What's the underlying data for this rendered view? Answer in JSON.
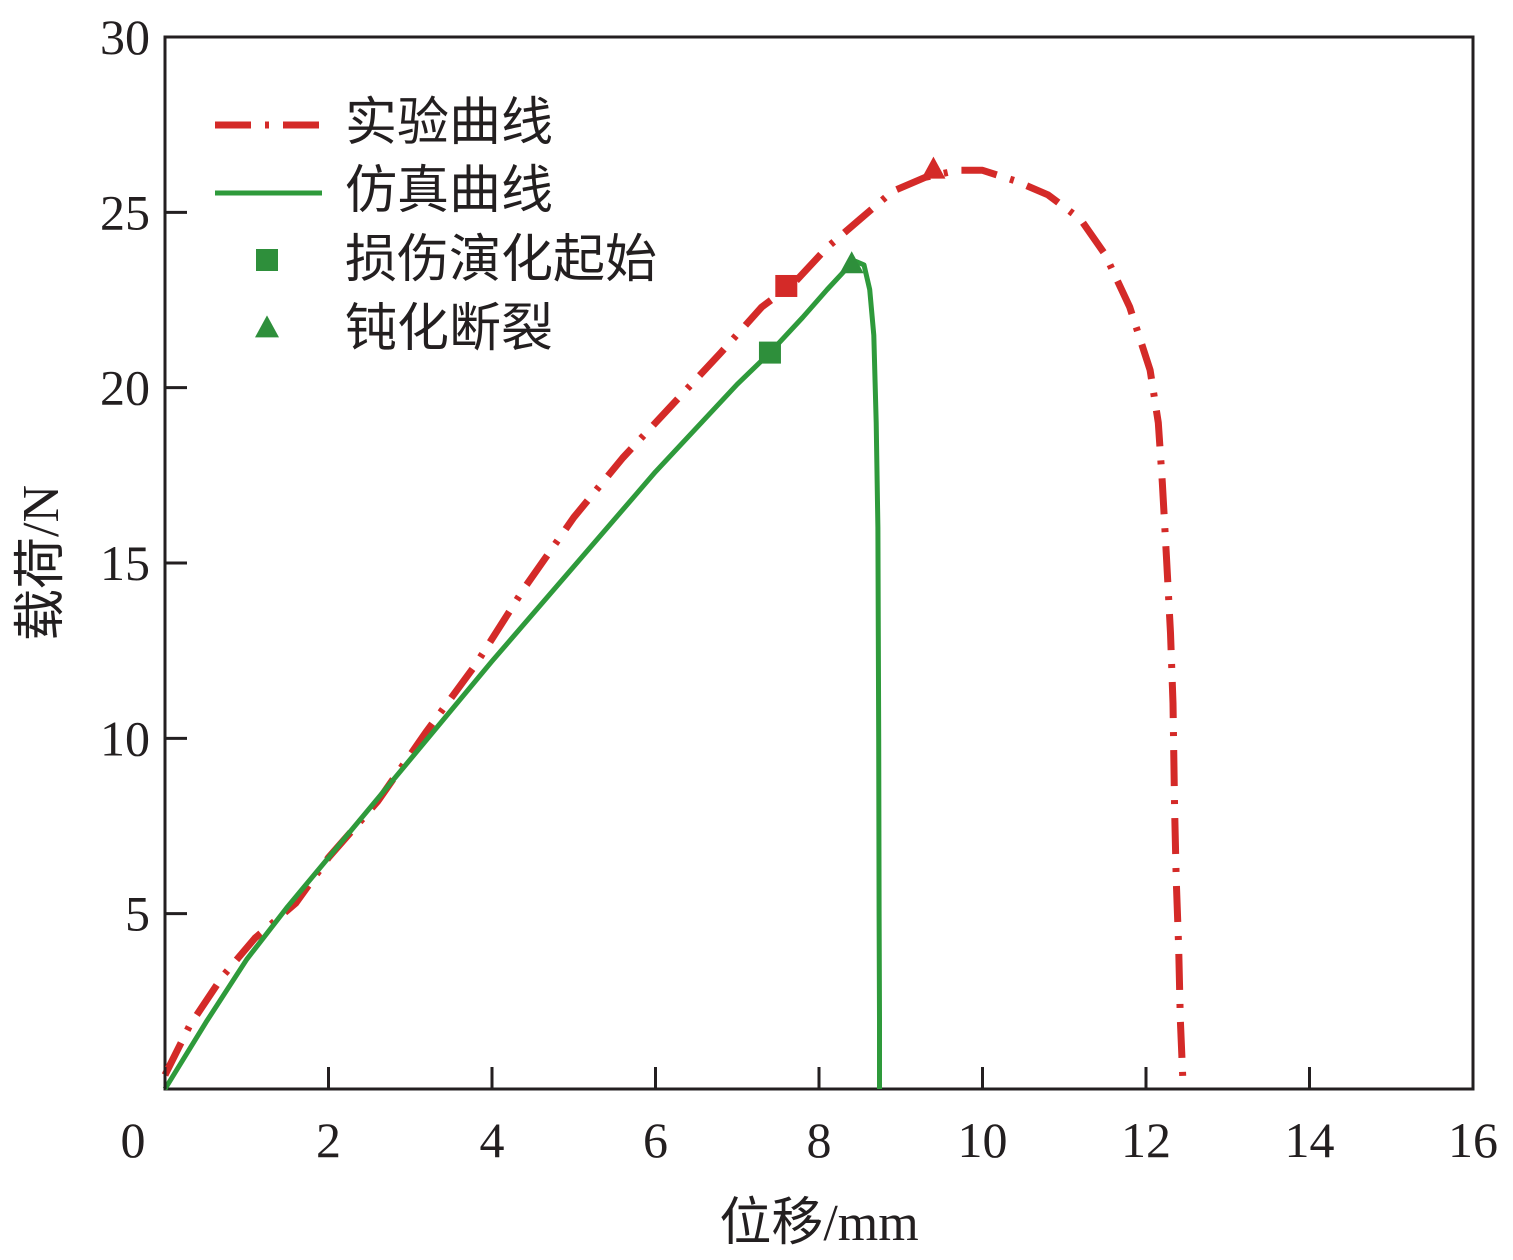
{
  "chart_data": {
    "type": "line",
    "xlabel": "位移/mm",
    "ylabel": "载荷/N",
    "xlim": [
      0,
      16
    ],
    "ylim": [
      0,
      30
    ],
    "xticks": [
      0,
      2,
      4,
      6,
      8,
      10,
      12,
      14,
      16
    ],
    "yticks": [
      5,
      10,
      15,
      20,
      25,
      30
    ],
    "grid": false,
    "legend_position": "top-left",
    "series": [
      {
        "name": "实验曲线",
        "color": "#d42a28",
        "style": "dash-dot",
        "x": [
          0,
          0.3,
          0.7,
          1.1,
          1.6,
          2.0,
          2.6,
          3.2,
          3.8,
          4.4,
          5.0,
          5.6,
          6.2,
          6.8,
          7.3,
          7.7,
          8.1,
          8.5,
          8.9,
          9.3,
          9.7,
          10.0,
          10.4,
          10.8,
          11.2,
          11.5,
          11.8,
          12.05,
          12.15,
          12.2,
          12.25,
          12.3,
          12.33,
          12.35,
          12.37,
          12.4,
          12.42,
          12.45
        ],
        "y": [
          0.4,
          1.8,
          3.2,
          4.3,
          5.3,
          6.6,
          8.2,
          10.2,
          12.1,
          14.3,
          16.3,
          18.0,
          19.5,
          21.0,
          22.3,
          23.0,
          24.0,
          24.8,
          25.6,
          26.0,
          26.2,
          26.2,
          25.9,
          25.5,
          24.8,
          23.8,
          22.3,
          20.5,
          19.0,
          17.3,
          15.2,
          13.0,
          11.0,
          8.0,
          6.0,
          4.0,
          2.0,
          0.3
        ]
      },
      {
        "name": "仿真曲线",
        "color": "#2e9a3b",
        "style": "solid",
        "x": [
          0,
          0.5,
          1.0,
          1.5,
          2.0,
          3.0,
          4.0,
          5.0,
          6.0,
          7.0,
          7.4,
          7.8,
          8.1,
          8.3,
          8.45,
          8.55,
          8.62,
          8.67,
          8.7,
          8.72,
          8.73,
          8.735,
          8.74,
          8.74
        ],
        "y": [
          0,
          1.9,
          3.7,
          5.2,
          6.6,
          9.4,
          12.2,
          14.9,
          17.6,
          20.1,
          21.0,
          22.0,
          22.8,
          23.3,
          23.6,
          23.5,
          22.8,
          21.5,
          19.0,
          16.0,
          10.0,
          5.0,
          2.0,
          0
        ]
      }
    ],
    "markers": [
      {
        "legend": "损伤演化起始",
        "shape": "square",
        "series": "实验曲线",
        "x": 7.6,
        "y": 22.9,
        "color": "#d42a28"
      },
      {
        "legend": "损伤演化起始",
        "shape": "square",
        "series": "仿真曲线",
        "x": 7.4,
        "y": 21.0,
        "color": "#2e8f3b"
      },
      {
        "legend": "钝化断裂",
        "shape": "triangle",
        "series": "实验曲线",
        "x": 9.4,
        "y": 26.2,
        "color": "#d42a28"
      },
      {
        "legend": "钝化断裂",
        "shape": "triangle",
        "series": "仿真曲线",
        "x": 8.4,
        "y": 23.5,
        "color": "#2e8f3b"
      }
    ],
    "legend": [
      {
        "label": "实验曲线",
        "kind": "line",
        "color": "#d42a28",
        "style": "dash-dot"
      },
      {
        "label": "仿真曲线",
        "kind": "line",
        "color": "#2e9a3b",
        "style": "solid"
      },
      {
        "label": "损伤演化起始",
        "kind": "marker",
        "shape": "square",
        "color": "#2e8f3b"
      },
      {
        "label": "钝化断裂",
        "kind": "marker",
        "shape": "triangle",
        "color": "#2e8f3b"
      }
    ]
  }
}
